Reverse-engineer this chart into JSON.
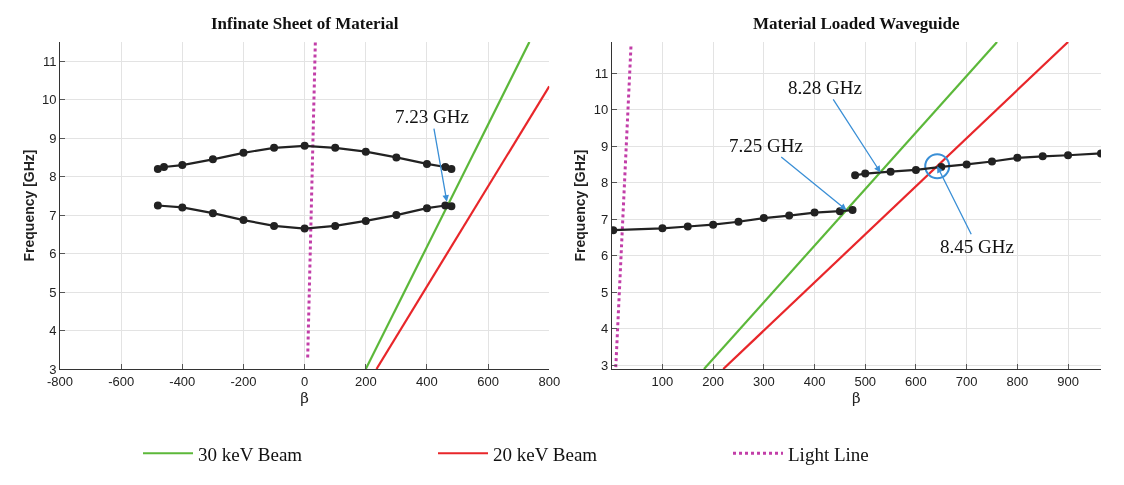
{
  "chart_data": [
    {
      "type": "line",
      "title": "Infinate Sheet of Material",
      "xlabel": "β",
      "ylabel": "Frequency [GHz]",
      "xlim": [
        -800,
        800
      ],
      "xticks": [
        -800,
        -600,
        -400,
        -200,
        0,
        200,
        400,
        600,
        800
      ],
      "ylim": [
        3,
        11.5
      ],
      "yticks": [
        3,
        4,
        5,
        6,
        7,
        8,
        9,
        10,
        11
      ],
      "grid": true,
      "legend": "bottom",
      "series": [
        {
          "name": "30 keV Beam",
          "color": "#5cb83a",
          "x": [
            200,
            735
          ],
          "values": [
            3,
            11.5
          ],
          "line_style": "solid",
          "marker": "none"
        },
        {
          "name": "20 keV Beam",
          "color": "#e8262a",
          "x": [
            235,
            800
          ],
          "values": [
            3,
            10.35
          ],
          "line_style": "solid",
          "marker": "none"
        },
        {
          "name": "Light Line",
          "color": "#c23ea8",
          "x": [
            10,
            35
          ],
          "values": [
            3.3,
            11.5
          ],
          "line_style": "dotted",
          "marker": "none"
        },
        {
          "color": "#222222",
          "x": [
            -480,
            -460,
            -400,
            -300,
            -200,
            -100,
            0,
            100,
            200,
            300,
            400,
            460,
            480
          ],
          "values": [
            8.2,
            8.25,
            8.3,
            8.45,
            8.62,
            8.75,
            8.8,
            8.75,
            8.65,
            8.5,
            8.33,
            8.25,
            8.2
          ],
          "line_style": "solid",
          "marker": "circle"
        },
        {
          "color": "#222222",
          "x": [
            -480,
            -400,
            -300,
            -200,
            -100,
            0,
            100,
            200,
            300,
            400,
            460,
            480
          ],
          "values": [
            7.25,
            7.2,
            7.05,
            6.87,
            6.72,
            6.65,
            6.72,
            6.85,
            7.0,
            7.18,
            7.25,
            7.23
          ],
          "line_style": "solid",
          "marker": "circle"
        }
      ],
      "annotations": [
        {
          "text": "7.23 GHz",
          "x": 465,
          "y": 7.35
        }
      ]
    },
    {
      "type": "line",
      "title": "Material Loaded Waveguide",
      "xlabel": "β",
      "ylabel": "Frequency [GHz]",
      "xlim": [
        0,
        965
      ],
      "xticks": [
        100,
        200,
        300,
        400,
        500,
        600,
        700,
        800,
        900
      ],
      "ylim": [
        2.9,
        11.85
      ],
      "yticks": [
        3,
        4,
        5,
        6,
        7,
        8,
        9,
        10,
        11
      ],
      "grid": true,
      "legend": "bottom",
      "series": [
        {
          "name": "30 keV Beam",
          "color": "#5cb83a",
          "x": [
            182,
            760
          ],
          "values": [
            2.9,
            11.85
          ],
          "line_style": "solid",
          "marker": "none"
        },
        {
          "name": "20 keV Beam",
          "color": "#e8262a",
          "x": [
            220,
            900
          ],
          "values": [
            2.9,
            11.85
          ],
          "line_style": "solid",
          "marker": "none"
        },
        {
          "name": "Light Line",
          "color": "#c23ea8",
          "x": [
            8,
            38
          ],
          "values": [
            2.95,
            11.75
          ],
          "line_style": "dotted",
          "marker": "none"
        },
        {
          "color": "#222222",
          "x": [
            3,
            100,
            150,
            200,
            250,
            300,
            350,
            400,
            450,
            475
          ],
          "values": [
            6.7,
            6.75,
            6.8,
            6.85,
            6.93,
            7.03,
            7.1,
            7.18,
            7.22,
            7.25
          ],
          "line_style": "solid",
          "marker": "circle"
        },
        {
          "type": "scatter",
          "color": "#3a8fd6",
          "x": [
            642
          ],
          "values": [
            8.45
          ],
          "marker": "circle"
        },
        {
          "color": "#222222",
          "x": [
            480,
            500,
            550,
            600,
            650,
            700,
            750,
            800,
            850,
            900,
            965
          ],
          "values": [
            8.2,
            8.25,
            8.3,
            8.35,
            8.43,
            8.5,
            8.58,
            8.68,
            8.72,
            8.75,
            8.8
          ],
          "line_style": "solid",
          "marker": "circle"
        }
      ],
      "annotations": [
        {
          "text": "7.25 GHz",
          "x": 463,
          "y": 7.25
        },
        {
          "text": "8.28 GHz",
          "x": 530,
          "y": 8.28
        },
        {
          "text": "8.45 GHz",
          "x": 642,
          "y": 8.45
        }
      ]
    }
  ]
}
